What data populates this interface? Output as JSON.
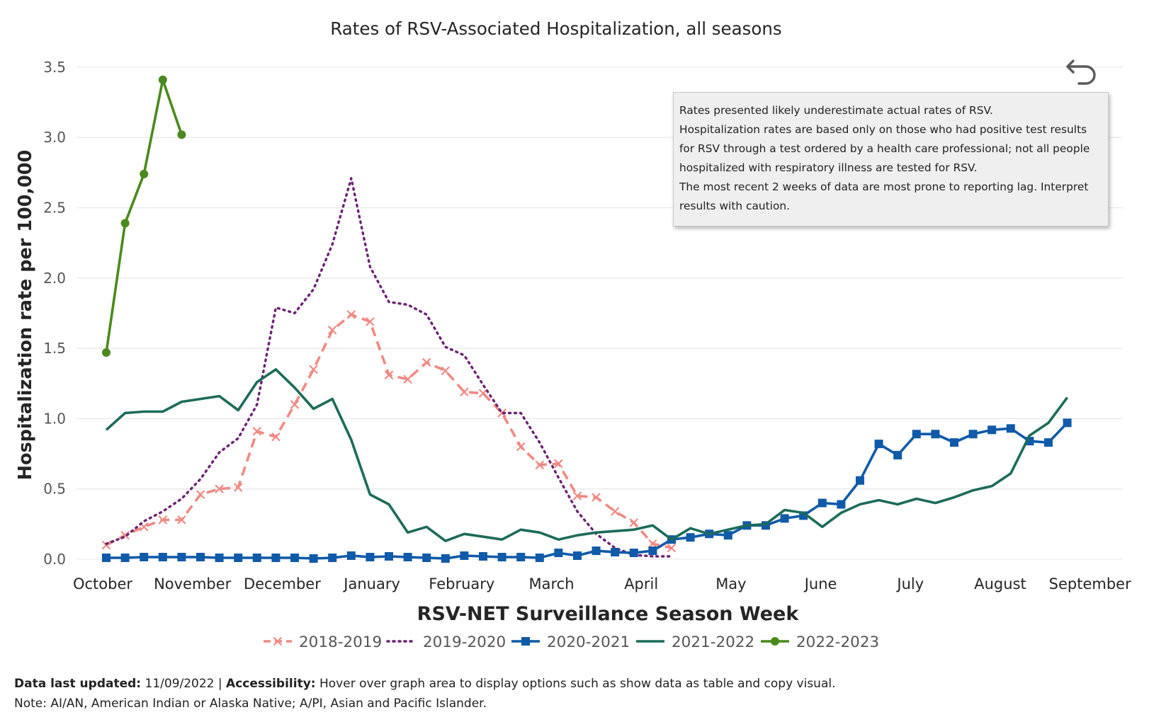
{
  "chart_data": {
    "type": "line",
    "title": "Rates of RSV-Associated Hospitalization, all seasons",
    "xlabel": "RSV-NET Surveillance Season Week",
    "ylabel": "Hospitalization rate per 100,000",
    "ylim": [
      0,
      3.5
    ],
    "yticks": [
      "0.0",
      "0.5",
      "1.0",
      "1.5",
      "2.0",
      "2.5",
      "3.0",
      "3.5"
    ],
    "months": [
      "October",
      "November",
      "December",
      "January",
      "February",
      "March",
      "April",
      "May",
      "June",
      "July",
      "August",
      "September"
    ],
    "grid": true,
    "legend_position": "bottom",
    "series": [
      {
        "name": "2018-2019",
        "color": "#f08a84",
        "style": "dashed",
        "marker": "x",
        "values": [
          0.1,
          0.17,
          0.23,
          0.28,
          0.28,
          0.46,
          0.5,
          0.51,
          0.91,
          0.87,
          1.1,
          1.35,
          1.63,
          1.74,
          1.69,
          1.31,
          1.28,
          1.4,
          1.34,
          1.19,
          1.18,
          1.04,
          0.8,
          0.67,
          0.68,
          0.45,
          0.44,
          0.34,
          0.26,
          0.11,
          0.08
        ]
      },
      {
        "name": "2019-2020",
        "color": "#6b2272",
        "style": "dotted",
        "marker": "none",
        "values": [
          0.11,
          0.16,
          0.27,
          0.34,
          0.43,
          0.57,
          0.76,
          0.86,
          1.1,
          1.79,
          1.75,
          1.92,
          2.24,
          2.71,
          2.08,
          1.83,
          1.81,
          1.74,
          1.51,
          1.45,
          1.24,
          1.04,
          1.04,
          0.83,
          0.58,
          0.34,
          0.18,
          0.08,
          0.03,
          0.02,
          0.02
        ]
      },
      {
        "name": "2020-2021",
        "color": "#0f5aa9",
        "style": "solid",
        "marker": "square",
        "values": [
          0.01,
          0.01,
          0.015,
          0.015,
          0.015,
          0.015,
          0.01,
          0.01,
          0.01,
          0.01,
          0.01,
          0.005,
          0.01,
          0.025,
          0.015,
          0.02,
          0.015,
          0.01,
          0.005,
          0.025,
          0.02,
          0.015,
          0.015,
          0.01,
          0.045,
          0.025,
          0.06,
          0.05,
          0.045,
          0.06,
          0.14,
          0.155,
          0.18,
          0.17,
          0.24,
          0.24,
          0.29,
          0.31,
          0.4,
          0.39,
          0.56,
          0.82,
          0.74,
          0.89,
          0.89,
          0.83,
          0.89,
          0.92,
          0.93,
          0.84,
          0.83,
          0.97
        ]
      },
      {
        "name": "2021-2022",
        "color": "#1c6b5a",
        "style": "solid",
        "marker": "none",
        "values": [
          0.92,
          1.04,
          1.05,
          1.05,
          1.12,
          1.14,
          1.16,
          1.06,
          1.26,
          1.35,
          1.22,
          1.07,
          1.14,
          0.85,
          0.46,
          0.39,
          0.19,
          0.23,
          0.13,
          0.18,
          0.16,
          0.14,
          0.21,
          0.19,
          0.14,
          0.17,
          0.19,
          0.2,
          0.21,
          0.24,
          0.14,
          0.22,
          0.18,
          0.21,
          0.24,
          0.25,
          0.35,
          0.33,
          0.23,
          0.33,
          0.39,
          0.42,
          0.39,
          0.43,
          0.4,
          0.44,
          0.49,
          0.52,
          0.61,
          0.88,
          0.97,
          1.15
        ]
      },
      {
        "name": "2022-2023",
        "color": "#4a8a1c",
        "style": "solid",
        "marker": "circle",
        "values": [
          1.47,
          2.39,
          2.74,
          3.41,
          3.02
        ]
      }
    ]
  },
  "tooltip": {
    "lines": [
      "Rates presented likely underestimate actual rates of RSV.",
      "Hospitalization rates are based only on those who had positive test results",
      "for RSV through a test ordered by a health care professional; not all people",
      "hospitalized with respiratory illness are tested for RSV.",
      "The most recent 2 weeks of data are most prone to reporting lag. Interpret",
      "results with caution."
    ]
  },
  "footer": {
    "updated_label": "Data last updated:",
    "updated_value": " 11/09/2022 | ",
    "accessibility_label": "Accessibility:",
    "accessibility_text": " Hover over graph area to display options such as show data as table and copy visual.",
    "note": "Note: AI/AN, American Indian or Alaska Native; A/PI, Asian and Pacific Islander."
  },
  "back_icon": "undo-arrow-icon"
}
